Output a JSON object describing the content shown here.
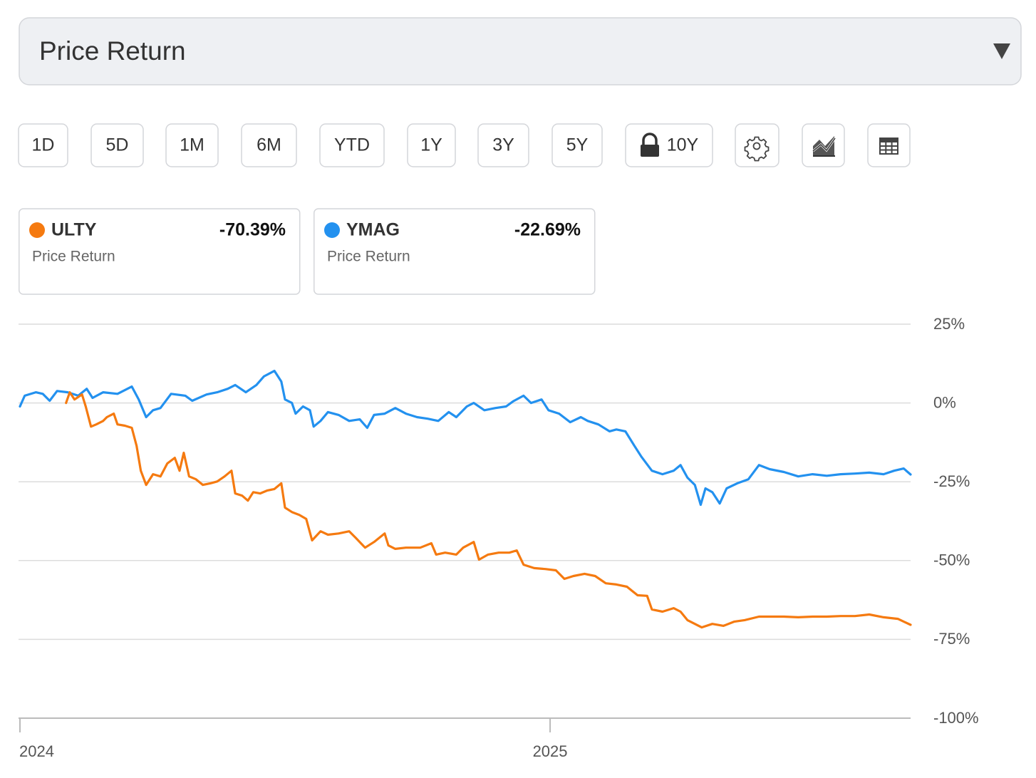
{
  "metric_select": {
    "label": "Price Return"
  },
  "range_buttons": [
    "1D",
    "5D",
    "1M",
    "6M",
    "YTD",
    "1Y",
    "3Y",
    "5Y",
    "10Y"
  ],
  "chart_data": {
    "type": "line",
    "xlim": [
      2024.0,
      2025.68
    ],
    "xticks": [
      2024,
      2025
    ],
    "ylim": [
      -100,
      25
    ],
    "yticks": [
      {
        "value": 25,
        "label": "25%"
      },
      {
        "value": 0,
        "label": "0%"
      },
      {
        "value": -25,
        "label": "-25%"
      },
      {
        "value": -50,
        "label": "-50%"
      },
      {
        "value": -75,
        "label": "-75%"
      },
      {
        "value": -100,
        "label": "-100%"
      }
    ],
    "grid": true,
    "series": [
      {
        "name": "ULTY",
        "color": "#f57a10",
        "summary": "-70.39%",
        "subtitle": "Price Return",
        "x": [
          2024.087,
          2024.094,
          2024.103,
          2024.117,
          2024.124,
          2024.134,
          2024.144,
          2024.157,
          2024.164,
          2024.177,
          2024.184,
          2024.198,
          2024.211,
          2024.22,
          2024.228,
          2024.238,
          2024.251,
          2024.265,
          2024.278,
          2024.292,
          2024.301,
          2024.309,
          2024.319,
          2024.332,
          2024.345,
          2024.359,
          2024.372,
          2024.386,
          2024.399,
          2024.406,
          2024.419,
          2024.43,
          2024.44,
          2024.453,
          2024.466,
          2024.48,
          2024.493,
          2024.5,
          2024.513,
          2024.527,
          2024.54,
          2024.551,
          2024.567,
          2024.581,
          2024.601,
          2024.621,
          2024.634,
          2024.651,
          2024.668,
          2024.688,
          2024.695,
          2024.708,
          2024.728,
          2024.755,
          2024.776,
          2024.785,
          2024.802,
          2024.823,
          2024.836,
          2024.856,
          2024.866,
          2024.883,
          2024.903,
          2024.923,
          2024.937,
          2024.95,
          2024.97,
          2024.991,
          2025.011,
          2025.027,
          2025.044,
          2025.065,
          2025.085,
          2025.105,
          2025.125,
          2025.145,
          2025.165,
          2025.183,
          2025.192,
          2025.212,
          2025.233,
          2025.246,
          2025.259,
          2025.273,
          2025.286,
          2025.306,
          2025.327,
          2025.347,
          2025.367,
          2025.394,
          2025.414,
          2025.441,
          2025.468,
          2025.495,
          2025.522,
          2025.548,
          2025.575,
          2025.602,
          2025.629,
          2025.656,
          2025.68
        ],
        "values": [
          0,
          3.4,
          1.1,
          2.7,
          -1.1,
          -7.5,
          -6.8,
          -5.7,
          -4.5,
          -3.4,
          -6.8,
          -7.2,
          -7.9,
          -13.6,
          -21.5,
          -26.0,
          -22.6,
          -23.3,
          -19.2,
          -17.4,
          -21.5,
          -15.8,
          -23.3,
          -24.2,
          -26.0,
          -25.5,
          -24.9,
          -23.3,
          -21.5,
          -28.7,
          -29.4,
          -31.0,
          -28.3,
          -28.7,
          -27.8,
          -27.3,
          -25.5,
          -33.2,
          -34.6,
          -35.5,
          -36.8,
          -43.6,
          -40.7,
          -41.8,
          -41.4,
          -40.7,
          -42.9,
          -45.9,
          -44.1,
          -41.4,
          -45.2,
          -46.3,
          -45.9,
          -45.9,
          -44.5,
          -48.1,
          -47.5,
          -48.1,
          -45.9,
          -44.1,
          -49.7,
          -48.1,
          -47.5,
          -47.5,
          -46.8,
          -51.3,
          -52.4,
          -52.7,
          -53.1,
          -55.8,
          -54.9,
          -54.2,
          -54.9,
          -57.2,
          -57.6,
          -58.3,
          -61.0,
          -61.2,
          -65.5,
          -66.2,
          -65.1,
          -66.2,
          -68.9,
          -70.1,
          -71.2,
          -70.1,
          -70.7,
          -69.4,
          -68.9,
          -67.8,
          -67.8,
          -67.8,
          -68.0,
          -67.8,
          -67.8,
          -67.6,
          -67.6,
          -67.1,
          -68.0,
          -68.5,
          -70.39
        ]
      },
      {
        "name": "YMAG",
        "color": "#2391ef",
        "summary": "-22.69%",
        "subtitle": "Price Return",
        "x": [
          2024.0,
          2024.009,
          2024.03,
          2024.043,
          2024.056,
          2024.07,
          2024.09,
          2024.11,
          2024.126,
          2024.137,
          2024.157,
          2024.184,
          2024.211,
          2024.224,
          2024.238,
          2024.251,
          2024.265,
          2024.285,
          2024.312,
          2024.325,
          2024.352,
          2024.372,
          2024.392,
          2024.406,
          2024.426,
          2024.446,
          2024.46,
          2024.48,
          2024.493,
          2024.5,
          2024.513,
          2024.52,
          2024.534,
          2024.547,
          2024.554,
          2024.567,
          2024.581,
          2024.601,
          2024.621,
          2024.641,
          2024.655,
          2024.668,
          2024.688,
          2024.708,
          2024.728,
          2024.749,
          2024.769,
          2024.789,
          2024.809,
          2024.823,
          2024.843,
          2024.856,
          2024.876,
          2024.897,
          2024.917,
          2024.93,
          2024.95,
          2024.964,
          2024.984,
          2024.997,
          2025.017,
          2025.038,
          2025.058,
          2025.071,
          2025.091,
          2025.112,
          2025.125,
          2025.142,
          2025.159,
          2025.172,
          2025.192,
          2025.212,
          2025.233,
          2025.246,
          2025.259,
          2025.273,
          2025.284,
          2025.293,
          2025.306,
          2025.32,
          2025.333,
          2025.353,
          2025.374,
          2025.394,
          2025.414,
          2025.441,
          2025.468,
          2025.495,
          2025.522,
          2025.548,
          2025.575,
          2025.602,
          2025.629,
          2025.649,
          2025.667,
          2025.68
        ],
        "values": [
          -1.1,
          2.3,
          3.4,
          2.9,
          0.7,
          3.8,
          3.4,
          2.3,
          4.5,
          1.6,
          3.4,
          2.9,
          5.2,
          1.1,
          -4.5,
          -2.3,
          -1.6,
          2.9,
          2.3,
          0.7,
          2.7,
          3.4,
          4.5,
          5.7,
          3.4,
          5.7,
          8.4,
          10.2,
          6.8,
          1.1,
          0.0,
          -3.4,
          -1.1,
          -2.3,
          -7.5,
          -5.7,
          -2.9,
          -3.8,
          -5.7,
          -5.2,
          -7.9,
          -3.8,
          -3.4,
          -1.6,
          -3.4,
          -4.5,
          -5.0,
          -5.7,
          -2.9,
          -4.5,
          -1.1,
          0.0,
          -2.3,
          -1.6,
          -1.1,
          0.5,
          2.3,
          0.0,
          1.1,
          -2.3,
          -3.4,
          -6.1,
          -4.5,
          -5.7,
          -6.8,
          -9.0,
          -8.4,
          -9.0,
          -13.6,
          -17.0,
          -21.5,
          -22.6,
          -21.5,
          -19.7,
          -23.7,
          -26.0,
          -32.3,
          -27.1,
          -28.3,
          -31.9,
          -27.1,
          -25.5,
          -24.2,
          -19.7,
          -21.0,
          -21.9,
          -23.3,
          -22.6,
          -23.1,
          -22.6,
          -22.4,
          -22.1,
          -22.6,
          -21.5,
          -20.8,
          -22.69
        ]
      }
    ]
  }
}
